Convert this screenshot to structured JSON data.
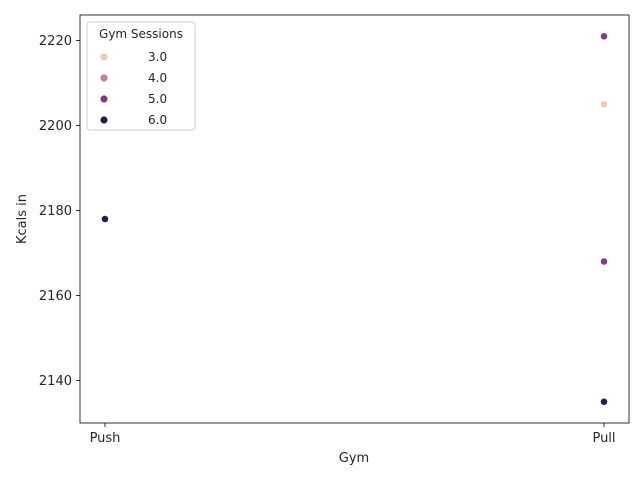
{
  "chart_data": {
    "type": "scatter",
    "title": "",
    "xlabel": "Gym",
    "ylabel": "Kcals in",
    "categories": [
      "Push",
      "Pull"
    ],
    "ylim": [
      2130,
      2226
    ],
    "yticks": [
      2140,
      2160,
      2180,
      2200,
      2220
    ],
    "grid": false,
    "legend": {
      "title": "Gym Sessions",
      "placement": "top-left",
      "entries": [
        {
          "label": "3.0",
          "color": "#eccbbf"
        },
        {
          "label": "4.0",
          "color": "#c0809a"
        },
        {
          "label": "5.0",
          "color": "#7e4081"
        },
        {
          "label": "6.0",
          "color": "#2c1e3f"
        }
      ]
    },
    "points": [
      {
        "x": "Push",
        "y": 2178,
        "sessions": 6.0,
        "color": "#2c1e3f"
      },
      {
        "x": "Pull",
        "y": 2221,
        "sessions": 5.0,
        "color": "#7e4081"
      },
      {
        "x": "Pull",
        "y": 2205,
        "sessions": 3.0,
        "color": "#eccbbf"
      },
      {
        "x": "Pull",
        "y": 2168,
        "sessions": 5.0,
        "color": "#7e4081"
      },
      {
        "x": "Pull",
        "y": 2135,
        "sessions": 6.0,
        "color": "#2c1e3f"
      }
    ]
  }
}
